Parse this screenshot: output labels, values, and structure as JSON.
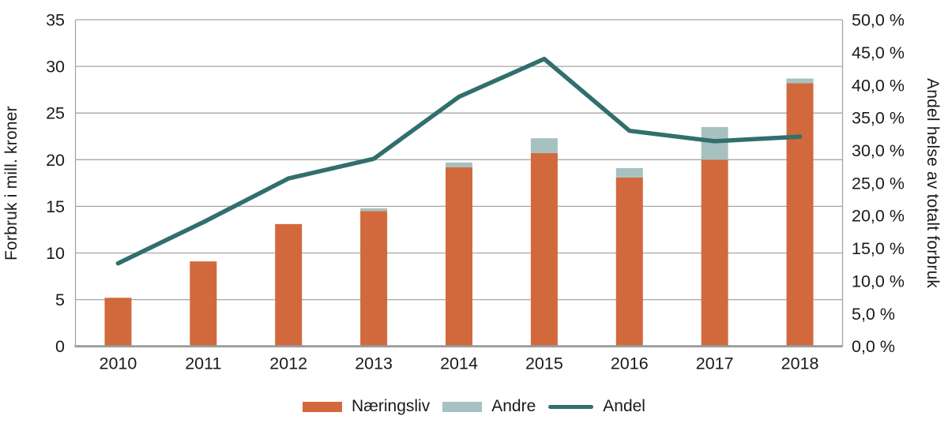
{
  "chart_data": {
    "type": "bar",
    "subtype": "stacked-bars-with-line-combo",
    "categories": [
      "2010",
      "2011",
      "2012",
      "2013",
      "2014",
      "2015",
      "2016",
      "2017",
      "2018"
    ],
    "series": [
      {
        "name": "Næringsliv",
        "type": "bar",
        "axis": "left",
        "color": "#D1693C",
        "values": [
          5.2,
          9.1,
          13.1,
          14.5,
          19.2,
          20.7,
          18.1,
          20.0,
          28.2
        ]
      },
      {
        "name": "Andre",
        "type": "bar-stacked",
        "axis": "left",
        "color": "#A7C1C1",
        "values": [
          0,
          0,
          0,
          0.3,
          0.5,
          1.6,
          1.0,
          3.5,
          0.5
        ]
      },
      {
        "name": "Andel",
        "type": "line",
        "axis": "right",
        "color": "#316F6D",
        "values": [
          12.7,
          19.0,
          25.7,
          28.7,
          38.2,
          44.0,
          33.0,
          31.4,
          32.1
        ]
      }
    ],
    "left_axis": {
      "title": "Forbruk i mill. kroner",
      "min": 0,
      "max": 35,
      "step": 5,
      "tick_labels": [
        "0",
        "5",
        "10",
        "15",
        "20",
        "25",
        "30",
        "35"
      ]
    },
    "right_axis": {
      "title": "Andel helse av totalt forbruk",
      "min": 0,
      "max": 50,
      "step": 5,
      "tick_labels": [
        "0,0 %",
        "5,0 %",
        "10,0 %",
        "15,0 %",
        "20,0 %",
        "25,0 %",
        "30,0 %",
        "35,0 %",
        "40,0 %",
        "45,0 %",
        "50,0 %"
      ]
    },
    "legend": {
      "position": "bottom",
      "entries": [
        "Næringsliv",
        "Andre",
        "Andel"
      ]
    },
    "grid": true,
    "colors": {
      "gridline": "#A6A6A6",
      "axis_line": "#A6A6A6",
      "baseline": "#9B9B9B",
      "text": "#1A1A1A",
      "background": "#FFFFFF"
    }
  }
}
